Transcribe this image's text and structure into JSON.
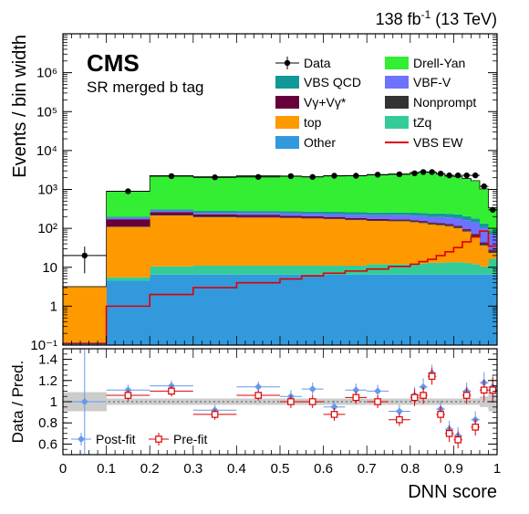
{
  "header": {
    "lumi_text": "138 fb",
    "lumi_exp": "-1",
    "energy_text": " (13 TeV)"
  },
  "labels": {
    "experiment": "CMS",
    "region": "SR merged b tag"
  },
  "legend": [
    {
      "label": "Data",
      "kind": "data",
      "color": "#000000"
    },
    {
      "label": "Drell-Yan",
      "kind": "fill",
      "color": "#33ee33"
    },
    {
      "label": "VBS QCD",
      "kind": "fill",
      "color": "#119999"
    },
    {
      "label": "VBF-V",
      "kind": "fill",
      "color": "#6f71ff"
    },
    {
      "label": "Vγ+Vγ*",
      "kind": "fill",
      "color": "#66003a"
    },
    {
      "label": "Nonprompt",
      "kind": "fill",
      "color": "#333333"
    },
    {
      "label": "top",
      "kind": "fill",
      "color": "#ff9900"
    },
    {
      "label": "tZq",
      "kind": "fill",
      "color": "#33cc99"
    },
    {
      "label": "Other",
      "kind": "fill",
      "color": "#3399dd"
    },
    {
      "label": "VBS EW",
      "kind": "line",
      "color": "#dd0000"
    }
  ],
  "ratio_legend": [
    {
      "label": "Post-fit",
      "color": "#6699ee"
    },
    {
      "label": "Pre-fit",
      "color": "#dd0000"
    }
  ],
  "chart_data": [
    {
      "type": "area",
      "log_y": true,
      "xlabel": "",
      "ylabel": "Events / bin width",
      "xlim": [
        0,
        1
      ],
      "ylim": [
        0.1,
        10000000
      ],
      "y_tick_labels": [
        "10⁻¹",
        "1",
        "10",
        "10²",
        "10³",
        "10⁴",
        "10⁵",
        "10⁶"
      ],
      "bin_edges": [
        0,
        0.1,
        0.2,
        0.3,
        0.4,
        0.5,
        0.55,
        0.6,
        0.65,
        0.7,
        0.75,
        0.8,
        0.82,
        0.84,
        0.86,
        0.88,
        0.9,
        0.92,
        0.94,
        0.96,
        0.98,
        1.0
      ],
      "stack_order": [
        "Other",
        "tZq",
        "top",
        "Nonprompt",
        "Vγ+Vγ*",
        "VBF-V",
        "VBS QCD",
        "Drell-Yan"
      ],
      "series": [
        {
          "name": "Other",
          "color": "#3399dd",
          "values": [
            0.11,
            4.5,
            6.5,
            6.5,
            6.5,
            6.5,
            6.5,
            6.5,
            6.5,
            6.5,
            6.5,
            6.5,
            6.5,
            6.5,
            6.5,
            6.5,
            6.5,
            6.5,
            6.5,
            6.5,
            6.5
          ]
        },
        {
          "name": "tZq",
          "color": "#33cc99",
          "values": [
            0.01,
            1.0,
            4.0,
            4.5,
            4.5,
            4.5,
            4.5,
            4.5,
            4.5,
            5.5,
            5.5,
            5.5,
            6.0,
            6.5,
            6.5,
            7.0,
            7.0,
            6.5,
            5.5,
            4.0,
            10.0
          ]
        },
        {
          "name": "top",
          "color": "#ff9900",
          "values": [
            3.0,
            103,
            203,
            182,
            178,
            173,
            168,
            162,
            152,
            143,
            140,
            132,
            124,
            113,
            108,
            100,
            88,
            70,
            50,
            26,
            7
          ]
        },
        {
          "name": "Nonprompt",
          "color": "#333333",
          "values": [
            0.02,
            3.0,
            8.0,
            7.0,
            7.0,
            7.0,
            7.0,
            7.0,
            8.0,
            8.0,
            8.0,
            8.0,
            8.0,
            8.0,
            7.0,
            7.0,
            7.0,
            6.0,
            5.0,
            4.0,
            3.0
          ]
        },
        {
          "name": "Vγ+Vγ*",
          "color": "#66003a",
          "values": [
            0.01,
            60,
            40,
            28,
            25,
            20,
            18,
            16,
            14,
            12,
            10,
            10,
            10,
            8,
            8,
            8,
            8,
            6,
            4,
            3,
            2
          ]
        },
        {
          "name": "VBF-V",
          "color": "#6f71ff",
          "values": [
            0.01,
            15,
            22,
            25,
            28,
            32,
            34,
            36,
            40,
            44,
            48,
            50,
            52,
            55,
            60,
            62,
            66,
            68,
            70,
            60,
            40
          ]
        },
        {
          "name": "VBS QCD",
          "color": "#119999",
          "values": [
            0.01,
            14,
            24,
            28,
            30,
            32,
            32,
            34,
            34,
            36,
            38,
            40,
            42,
            44,
            46,
            46,
            46,
            42,
            38,
            30,
            20
          ]
        },
        {
          "name": "Drell-Yan",
          "color": "#33ee33",
          "values": [
            0.01,
            700,
            1950,
            1850,
            1980,
            1900,
            1850,
            1950,
            2010,
            2100,
            2250,
            2500,
            2600,
            2500,
            2250,
            1950,
            1900,
            1700,
            1500,
            900,
            250
          ]
        }
      ],
      "signal": {
        "name": "VBS EW",
        "color": "#dd0000",
        "values": [
          0.11,
          1.0,
          2.0,
          3.0,
          4.0,
          5.0,
          6.0,
          7.0,
          8.0,
          9.0,
          10.5,
          12.0,
          14.0,
          16.0,
          20.0,
          25.0,
          32.0,
          45.0,
          60.0,
          85.0,
          35.0
        ]
      },
      "data": {
        "name": "Data",
        "values": [
          20,
          900,
          2200,
          2050,
          2100,
          2200,
          2100,
          2250,
          2250,
          2400,
          2450,
          2600,
          2800,
          2800,
          2550,
          2300,
          2300,
          2300,
          2300,
          1200,
          300
        ],
        "err_lo": [
          13,
          30,
          47,
          45,
          46,
          47,
          46,
          47,
          47,
          49,
          50,
          51,
          53,
          53,
          50,
          48,
          48,
          48,
          48,
          35,
          17
        ],
        "err_hi": [
          14,
          30,
          47,
          45,
          46,
          47,
          46,
          47,
          47,
          49,
          50,
          51,
          53,
          53,
          50,
          48,
          48,
          48,
          48,
          35,
          18
        ]
      }
    },
    {
      "type": "scatter",
      "xlabel": "DNN score",
      "ylabel": "Data / Pred.",
      "xlim": [
        0,
        1
      ],
      "ylim": [
        0.5,
        1.5
      ],
      "y_tick_labels": [
        "0.6",
        "0.8",
        "1",
        "1.2",
        "1.4"
      ],
      "x_tick_labels": [
        "0",
        "0.1",
        "0.2",
        "0.3",
        "0.4",
        "0.5",
        "0.6",
        "0.7",
        "0.8",
        "0.9",
        "1"
      ],
      "band": {
        "name": "Post-fit uncertainty",
        "color": "#cccccc",
        "lo": [
          0.91,
          0.97,
          0.97,
          0.97,
          0.97,
          0.97,
          0.97,
          0.97,
          0.97,
          0.97,
          0.97,
          0.97,
          0.97,
          0.97,
          0.97,
          0.97,
          0.97,
          0.97,
          0.97,
          0.95,
          0.91
        ],
        "hi": [
          1.09,
          1.03,
          1.03,
          1.03,
          1.03,
          1.03,
          1.03,
          1.03,
          1.03,
          1.03,
          1.03,
          1.03,
          1.03,
          1.03,
          1.03,
          1.03,
          1.03,
          1.03,
          1.03,
          1.05,
          1.09
        ]
      },
      "series": [
        {
          "name": "Post-fit",
          "color": "#6699ee",
          "x": [
            0.05,
            0.15,
            0.25,
            0.35,
            0.45,
            0.525,
            0.575,
            0.625,
            0.675,
            0.725,
            0.775,
            0.81,
            0.83,
            0.85,
            0.87,
            0.89,
            0.91,
            0.93,
            0.95,
            0.97,
            0.99
          ],
          "y": [
            1.0,
            1.11,
            1.15,
            0.92,
            1.14,
            1.05,
            1.12,
            0.95,
            1.11,
            1.1,
            0.91,
            1.06,
            1.14,
            1.27,
            0.93,
            0.74,
            0.68,
            1.1,
            0.83,
            1.18,
            1.14
          ],
          "err": [
            0.9,
            0.05,
            0.05,
            0.05,
            0.05,
            0.06,
            0.06,
            0.06,
            0.06,
            0.06,
            0.06,
            0.08,
            0.08,
            0.08,
            0.08,
            0.08,
            0.08,
            0.08,
            0.08,
            0.1,
            0.12
          ]
        },
        {
          "name": "Pre-fit",
          "color": "#dd0000",
          "x": [
            0.15,
            0.25,
            0.35,
            0.45,
            0.525,
            0.575,
            0.625,
            0.675,
            0.725,
            0.775,
            0.81,
            0.83,
            0.85,
            0.87,
            0.89,
            0.91,
            0.93,
            0.95,
            0.97,
            0.99
          ],
          "y": [
            1.06,
            1.1,
            0.88,
            1.06,
            1.0,
            1.0,
            0.88,
            1.04,
            1.0,
            0.83,
            1.04,
            1.06,
            1.24,
            0.88,
            0.7,
            0.64,
            1.06,
            0.76,
            1.11,
            1.11
          ],
          "err": [
            0.05,
            0.05,
            0.05,
            0.05,
            0.06,
            0.06,
            0.06,
            0.06,
            0.06,
            0.06,
            0.08,
            0.08,
            0.08,
            0.08,
            0.08,
            0.08,
            0.08,
            0.08,
            0.1,
            0.12
          ]
        }
      ]
    }
  ]
}
